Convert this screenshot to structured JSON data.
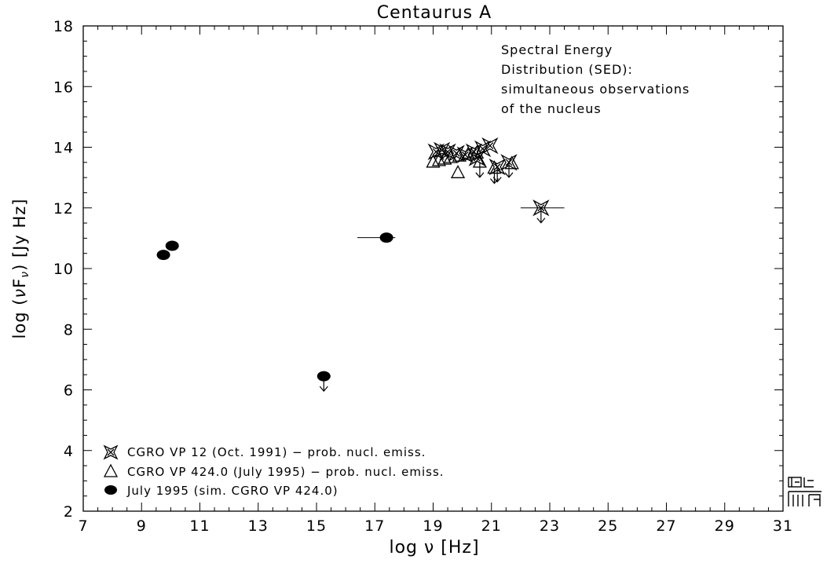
{
  "chart_data": {
    "type": "scatter",
    "title": "Centaurus A",
    "xlabel": "log ν [Hz]",
    "ylabel_parts": {
      "pre": "log (",
      "nu": "ν",
      "F": "F",
      "sub": "ν",
      "post": ") [Jy Hz]"
    },
    "xlim": [
      7,
      31
    ],
    "ylim": [
      2,
      18
    ],
    "xticks": [
      7,
      9,
      11,
      13,
      15,
      17,
      19,
      21,
      23,
      25,
      27,
      29,
      31
    ],
    "yticks": [
      2,
      4,
      6,
      8,
      10,
      12,
      14,
      16,
      18
    ],
    "grid": false,
    "annotation": [
      "Spectral Energy",
      "Distribution (SED):",
      "simultaneous observations",
      "of the nucleus"
    ],
    "legend": {
      "placement": "bottom-left",
      "entries": [
        {
          "marker": "star",
          "label": "CGRO VP 12 (Oct. 1991) − prob. nucl. emiss."
        },
        {
          "marker": "triangle",
          "label": "CGRO VP 424.0 (July 1995) − prob. nucl. emiss."
        },
        {
          "marker": "circle",
          "label": "July 1995 (sim. CGRO VP 424.0)"
        }
      ]
    },
    "series": [
      {
        "marker": "circle",
        "points": [
          {
            "x": 9.75,
            "y": 10.45
          },
          {
            "x": 10.05,
            "y": 10.75
          },
          {
            "x": 17.4,
            "y": 11.02,
            "xerr": [
              16.4,
              17.7
            ]
          },
          {
            "x": 15.25,
            "y": 6.45,
            "upper_limit": true
          }
        ]
      },
      {
        "marker": "star",
        "points": [
          {
            "x": 19.1,
            "y": 13.85
          },
          {
            "x": 19.3,
            "y": 13.9
          },
          {
            "x": 19.5,
            "y": 13.85
          },
          {
            "x": 19.8,
            "y": 13.8
          },
          {
            "x": 20.1,
            "y": 13.75
          },
          {
            "x": 20.4,
            "y": 13.85
          },
          {
            "x": 20.7,
            "y": 13.95
          },
          {
            "x": 20.95,
            "y": 14.05
          },
          {
            "x": 20.5,
            "y": 13.65
          },
          {
            "x": 21.2,
            "y": 13.35,
            "upper_limit": true
          },
          {
            "x": 21.6,
            "y": 13.5,
            "upper_limit": true
          },
          {
            "x": 22.7,
            "y": 12.0,
            "upper_limit": true,
            "xerr": [
              22.0,
              23.5
            ]
          }
        ]
      },
      {
        "marker": "triangle",
        "points": [
          {
            "x": 19.0,
            "y": 13.5
          },
          {
            "x": 19.2,
            "y": 13.55
          },
          {
            "x": 19.4,
            "y": 13.6
          },
          {
            "x": 19.6,
            "y": 13.65
          },
          {
            "x": 19.9,
            "y": 13.7
          },
          {
            "x": 20.2,
            "y": 13.75
          },
          {
            "x": 20.5,
            "y": 13.8
          },
          {
            "x": 19.85,
            "y": 13.15
          },
          {
            "x": 20.6,
            "y": 13.5,
            "upper_limit": true
          },
          {
            "x": 21.1,
            "y": 13.3,
            "upper_limit": true
          },
          {
            "x": 21.7,
            "y": 13.45
          }
        ]
      }
    ]
  }
}
